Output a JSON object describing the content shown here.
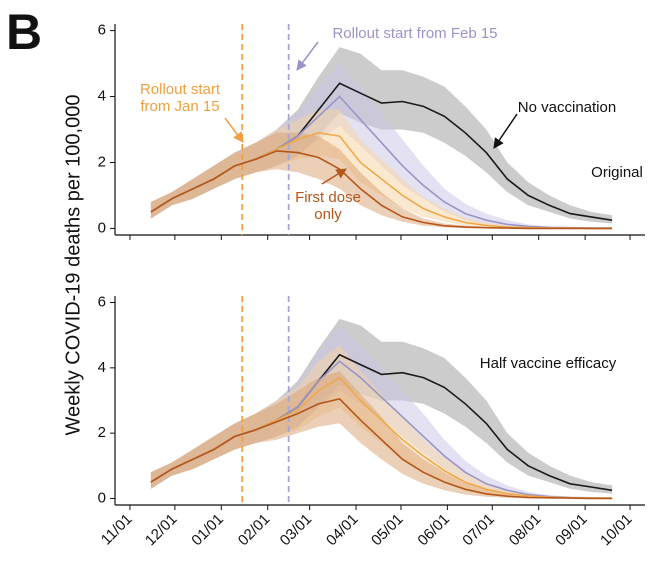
{
  "chart_data": [
    {
      "type": "line",
      "panel_label": "B",
      "ylabel": "Weekly COVID-19 deaths per 100,000",
      "x": [
        "11/15",
        "11/29",
        "12/13",
        "12/27",
        "01/10",
        "01/24",
        "02/07",
        "02/21",
        "03/07",
        "03/21",
        "04/04",
        "04/18",
        "05/02",
        "05/16",
        "05/30",
        "06/13",
        "06/27",
        "07/11",
        "07/25",
        "08/08",
        "08/22",
        "09/05",
        "09/19"
      ],
      "xlim": [
        "10/22",
        "10/11"
      ],
      "xticks": [
        "11/01",
        "12/01",
        "01/01",
        "02/01",
        "03/01",
        "04/01",
        "05/01",
        "06/01",
        "07/01",
        "08/01",
        "09/01",
        "10/01"
      ],
      "ylim": [
        -0.2,
        6.2
      ],
      "yticks": [
        0,
        2,
        4,
        6
      ],
      "vlines": [
        {
          "x": "01/15",
          "color": "#f0a040"
        },
        {
          "x": "02/15",
          "color": "#a9a5d3"
        }
      ],
      "series": [
        {
          "color": "#1a1a1a",
          "band_color": "#9a9a9a",
          "values": [
            0.5,
            0.9,
            1.2,
            1.5,
            1.9,
            2.1,
            2.4,
            2.8,
            3.6,
            4.4,
            4.1,
            3.8,
            3.85,
            3.7,
            3.4,
            2.9,
            2.3,
            1.5,
            1.0,
            0.7,
            0.45,
            0.35,
            0.25
          ],
          "lower": [
            0.3,
            0.7,
            0.9,
            1.2,
            1.5,
            1.7,
            1.9,
            2.2,
            2.8,
            3.5,
            3.2,
            3.0,
            3.0,
            2.9,
            2.6,
            2.2,
            1.7,
            1.1,
            0.7,
            0.5,
            0.3,
            0.2,
            0.15
          ],
          "upper": [
            0.8,
            1.1,
            1.5,
            1.9,
            2.3,
            2.6,
            3.0,
            3.6,
            4.6,
            5.5,
            5.3,
            4.8,
            4.8,
            4.6,
            4.3,
            3.7,
            3.0,
            2.0,
            1.4,
            1.0,
            0.7,
            0.5,
            0.4
          ]
        },
        {
          "color": "#9a95c8",
          "band_color": "#c9c6e6",
          "values": [
            0.5,
            0.9,
            1.2,
            1.5,
            1.9,
            2.1,
            2.4,
            2.8,
            3.4,
            4.0,
            3.3,
            2.6,
            1.9,
            1.3,
            0.8,
            0.45,
            0.25,
            0.12,
            0.06,
            0.03,
            0.02,
            0.01,
            0.01
          ],
          "lower": [
            0.3,
            0.7,
            0.9,
            1.2,
            1.5,
            1.7,
            1.9,
            2.2,
            2.7,
            3.1,
            2.5,
            1.9,
            1.3,
            0.9,
            0.5,
            0.25,
            0.12,
            0.05,
            0.02,
            0.01,
            0,
            0,
            0
          ],
          "upper": [
            0.8,
            1.1,
            1.5,
            1.9,
            2.3,
            2.6,
            3.0,
            3.5,
            4.3,
            5.0,
            4.3,
            3.5,
            2.7,
            1.9,
            1.2,
            0.75,
            0.45,
            0.25,
            0.12,
            0.06,
            0.04,
            0.02,
            0.02
          ]
        },
        {
          "color": "#f0a94a",
          "band_color": "#f8d3a0",
          "values": [
            0.5,
            0.9,
            1.2,
            1.5,
            1.9,
            2.1,
            2.4,
            2.7,
            2.9,
            2.8,
            2.0,
            1.5,
            1.0,
            0.6,
            0.35,
            0.18,
            0.09,
            0.04,
            0.02,
            0.01,
            0.01,
            0,
            0
          ],
          "lower": [
            0.3,
            0.7,
            0.9,
            1.2,
            1.5,
            1.7,
            1.9,
            2.1,
            2.2,
            2.1,
            1.4,
            1.0,
            0.6,
            0.35,
            0.2,
            0.08,
            0.04,
            0.01,
            0,
            0,
            0,
            0,
            0
          ],
          "upper": [
            0.8,
            1.1,
            1.5,
            1.9,
            2.3,
            2.6,
            3.0,
            3.3,
            3.6,
            3.6,
            2.7,
            2.1,
            1.5,
            0.95,
            0.6,
            0.32,
            0.17,
            0.08,
            0.04,
            0.02,
            0.02,
            0.01,
            0.01
          ]
        },
        {
          "color": "#b5561a",
          "band_color": "#d9a070",
          "values": [
            0.5,
            0.9,
            1.2,
            1.5,
            1.9,
            2.1,
            2.35,
            2.3,
            2.15,
            1.8,
            1.2,
            0.7,
            0.35,
            0.18,
            0.08,
            0.04,
            0.02,
            0.01,
            0,
            0,
            0,
            0,
            0
          ],
          "lower": [
            0.3,
            0.7,
            0.9,
            1.2,
            1.5,
            1.7,
            1.8,
            1.7,
            1.5,
            1.2,
            0.7,
            0.4,
            0.2,
            0.08,
            0.03,
            0.01,
            0,
            0,
            0,
            0,
            0,
            0,
            0
          ],
          "upper": [
            0.8,
            1.1,
            1.5,
            1.9,
            2.3,
            2.6,
            2.9,
            2.9,
            2.8,
            2.4,
            1.7,
            1.1,
            0.6,
            0.3,
            0.15,
            0.08,
            0.04,
            0.02,
            0.01,
            0.01,
            0,
            0,
            0
          ]
        }
      ],
      "annotations": [
        {
          "text": [
            "Rollout start from Feb 15"
          ],
          "color": "#9a95c8"
        },
        {
          "text": [
            "Rollout start",
            "from Jan 15"
          ],
          "color": "#f0a040"
        },
        {
          "text": [
            "No vaccination"
          ],
          "color": "#111111"
        },
        {
          "text": [
            "Original"
          ],
          "color": "#111111"
        },
        {
          "text": [
            "First dose",
            "only"
          ],
          "color": "#b5561a"
        }
      ]
    },
    {
      "type": "line",
      "x": [
        "11/15",
        "11/29",
        "12/13",
        "12/27",
        "01/10",
        "01/24",
        "02/07",
        "02/21",
        "03/07",
        "03/21",
        "04/04",
        "04/18",
        "05/02",
        "05/16",
        "05/30",
        "06/13",
        "06/27",
        "07/11",
        "07/25",
        "08/08",
        "08/22",
        "09/05",
        "09/19"
      ],
      "xlim": [
        "10/22",
        "10/11"
      ],
      "xticks": [
        "11/01",
        "12/01",
        "01/01",
        "02/01",
        "03/01",
        "04/01",
        "05/01",
        "06/01",
        "07/01",
        "08/01",
        "09/01",
        "10/01"
      ],
      "ylim": [
        -0.2,
        6.2
      ],
      "yticks": [
        0,
        2,
        4,
        6
      ],
      "vlines": [
        {
          "x": "01/15",
          "color": "#f0a040"
        },
        {
          "x": "02/15",
          "color": "#a9a5d3"
        }
      ],
      "series": [
        {
          "color": "#1a1a1a",
          "band_color": "#9a9a9a",
          "values": [
            0.5,
            0.9,
            1.2,
            1.5,
            1.9,
            2.1,
            2.4,
            2.8,
            3.6,
            4.4,
            4.1,
            3.8,
            3.85,
            3.7,
            3.4,
            2.9,
            2.3,
            1.5,
            1.0,
            0.7,
            0.45,
            0.35,
            0.25
          ],
          "lower": [
            0.3,
            0.7,
            0.9,
            1.2,
            1.5,
            1.7,
            1.9,
            2.2,
            2.8,
            3.5,
            3.2,
            3.0,
            3.0,
            2.9,
            2.6,
            2.2,
            1.7,
            1.1,
            0.7,
            0.5,
            0.3,
            0.2,
            0.15
          ],
          "upper": [
            0.8,
            1.1,
            1.5,
            1.9,
            2.3,
            2.6,
            3.0,
            3.6,
            4.6,
            5.5,
            5.3,
            4.8,
            4.8,
            4.6,
            4.3,
            3.7,
            3.0,
            2.0,
            1.4,
            1.0,
            0.7,
            0.5,
            0.4
          ]
        },
        {
          "color": "#9a95c8",
          "band_color": "#c9c6e6",
          "values": [
            0.5,
            0.9,
            1.2,
            1.5,
            1.9,
            2.1,
            2.4,
            2.8,
            3.6,
            4.2,
            3.7,
            3.1,
            2.5,
            1.9,
            1.3,
            0.8,
            0.45,
            0.25,
            0.12,
            0.06,
            0.03,
            0.02,
            0.01
          ],
          "lower": [
            0.3,
            0.7,
            0.9,
            1.2,
            1.5,
            1.7,
            1.9,
            2.2,
            2.8,
            3.3,
            2.9,
            2.4,
            1.9,
            1.4,
            0.9,
            0.55,
            0.3,
            0.15,
            0.07,
            0.03,
            0.01,
            0,
            0
          ],
          "upper": [
            0.8,
            1.1,
            1.5,
            1.9,
            2.3,
            2.6,
            3.0,
            3.5,
            4.5,
            5.3,
            4.7,
            4.0,
            3.3,
            2.6,
            1.8,
            1.15,
            0.7,
            0.4,
            0.2,
            0.1,
            0.06,
            0.04,
            0.02
          ]
        },
        {
          "color": "#f0a94a",
          "band_color": "#f8d3a0",
          "values": [
            0.5,
            0.9,
            1.2,
            1.5,
            1.9,
            2.1,
            2.4,
            2.7,
            3.3,
            3.7,
            3.0,
            2.4,
            1.8,
            1.3,
            0.85,
            0.5,
            0.28,
            0.15,
            0.08,
            0.04,
            0.02,
            0.01,
            0.01
          ],
          "lower": [
            0.3,
            0.7,
            0.9,
            1.2,
            1.5,
            1.7,
            1.9,
            2.1,
            2.5,
            2.8,
            2.2,
            1.7,
            1.2,
            0.85,
            0.5,
            0.3,
            0.15,
            0.07,
            0.03,
            0.01,
            0,
            0,
            0
          ],
          "upper": [
            0.8,
            1.1,
            1.5,
            1.9,
            2.3,
            2.6,
            3.0,
            3.4,
            4.2,
            4.7,
            3.9,
            3.2,
            2.5,
            1.8,
            1.25,
            0.8,
            0.45,
            0.25,
            0.13,
            0.07,
            0.04,
            0.02,
            0.02
          ]
        },
        {
          "color": "#b5561a",
          "band_color": "#d9a070",
          "values": [
            0.5,
            0.9,
            1.2,
            1.5,
            1.9,
            2.1,
            2.35,
            2.6,
            2.9,
            3.05,
            2.4,
            1.8,
            1.2,
            0.8,
            0.5,
            0.28,
            0.14,
            0.07,
            0.03,
            0.02,
            0.01,
            0,
            0
          ],
          "lower": [
            0.3,
            0.7,
            0.9,
            1.2,
            1.5,
            1.7,
            1.8,
            2.0,
            2.2,
            2.3,
            1.7,
            1.2,
            0.75,
            0.45,
            0.25,
            0.12,
            0.05,
            0.02,
            0,
            0,
            0,
            0,
            0
          ],
          "upper": [
            0.8,
            1.1,
            1.5,
            1.9,
            2.3,
            2.6,
            2.9,
            3.3,
            3.7,
            3.9,
            3.2,
            2.5,
            1.7,
            1.2,
            0.8,
            0.48,
            0.26,
            0.14,
            0.07,
            0.04,
            0.02,
            0.01,
            0.01
          ]
        }
      ],
      "annotations": [
        {
          "text": [
            "Half vaccine efficacy"
          ],
          "color": "#111111"
        }
      ]
    }
  ]
}
